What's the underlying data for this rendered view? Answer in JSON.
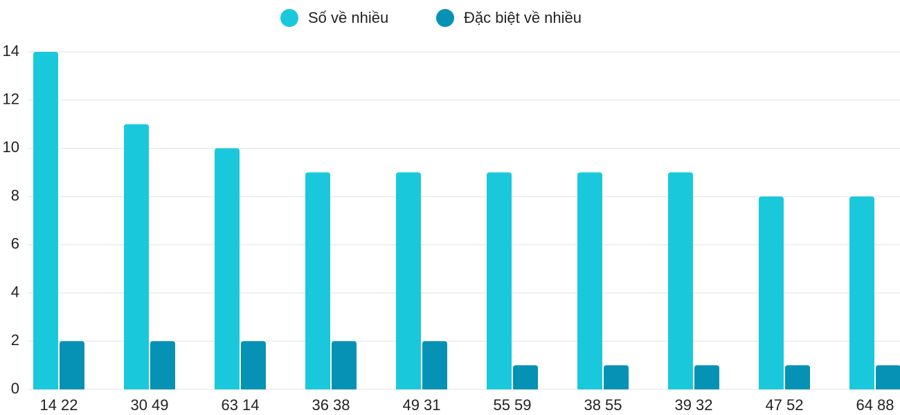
{
  "chart_data": {
    "type": "bar",
    "categories": [
      "14 22",
      "30 49",
      "63 14",
      "36 38",
      "49 31",
      "55 59",
      "38 55",
      "39 32",
      "47 52",
      "64 88"
    ],
    "series": [
      {
        "name": "Số về nhiều",
        "color": "#1ac8db",
        "values": [
          14,
          11,
          10,
          9,
          9,
          9,
          9,
          9,
          8,
          8
        ]
      },
      {
        "name": "Đặc biệt về nhiều",
        "color": "#0592b5",
        "values": [
          2,
          2,
          2,
          2,
          2,
          1,
          1,
          1,
          1,
          1
        ]
      }
    ],
    "ylim": [
      0,
      14
    ],
    "yticks": [
      0,
      2,
      4,
      6,
      8,
      10,
      12,
      14
    ],
    "grid": true,
    "legend": "top"
  }
}
